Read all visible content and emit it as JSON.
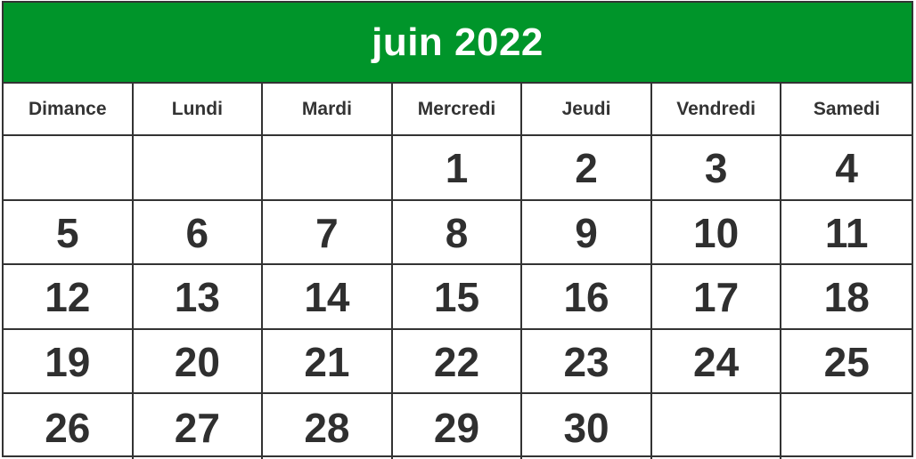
{
  "title": "juin 2022",
  "colors": {
    "header_bg": "#00952a",
    "header_text": "#ffffff",
    "grid_line": "#333333",
    "text": "#2f2f2f"
  },
  "weekdays": [
    "Dimance",
    "Lundi",
    "Mardi",
    "Mercredi",
    "Jeudi",
    "Vendredi",
    "Samedi"
  ],
  "weeks": [
    [
      "",
      "",
      "",
      "1",
      "2",
      "3",
      "4"
    ],
    [
      "5",
      "6",
      "7",
      "8",
      "9",
      "10",
      "11"
    ],
    [
      "12",
      "13",
      "14",
      "15",
      "16",
      "17",
      "18"
    ],
    [
      "19",
      "20",
      "21",
      "22",
      "23",
      "24",
      "25"
    ],
    [
      "26",
      "27",
      "28",
      "29",
      "30",
      "",
      ""
    ]
  ]
}
